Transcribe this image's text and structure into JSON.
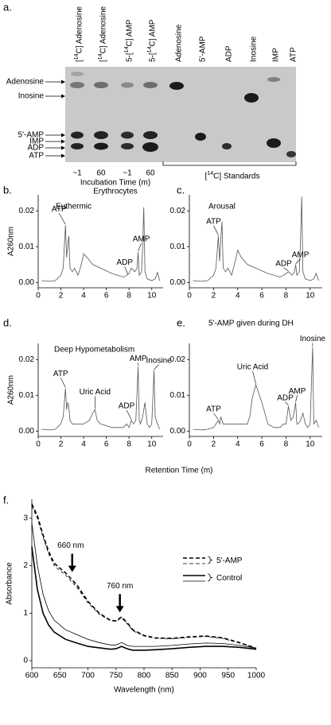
{
  "tlc": {
    "label": "a.",
    "lanes": [
      "[14C] Adenosine",
      "[14C] Adenosine",
      "5-[14C] AMP",
      "5-[14C] AMP",
      "Adenosine",
      "5'-AMP",
      "ADP",
      "Inosine",
      "IMP",
      "ATP"
    ],
    "spots": [
      "Adenosine",
      "Inosine",
      "5'-AMP",
      "IMP",
      "ADP",
      "ATP"
    ],
    "times": [
      "~1",
      "60",
      "~1",
      "60"
    ],
    "incubation": "Incubation Time (m)",
    "source": "Erythrocytes",
    "standards": "[14C] Standards"
  },
  "shared_xlabel": "Retention Time (m)",
  "chart_data": [
    {
      "type": "line",
      "label": "b.",
      "title": "Euthermic",
      "ylabel": "A260nm",
      "color": "#555555",
      "x": [
        0.3,
        1,
        1.5,
        2,
        2.2,
        2.4,
        2.5,
        2.6,
        2.7,
        2.8,
        3,
        3.2,
        3.5,
        3.8,
        4,
        4.3,
        4.8,
        5.5,
        6.5,
        7.5,
        7.8,
        8,
        8.2,
        8.5,
        8.7,
        8.8,
        8.9,
        9.1,
        9.2,
        9.3,
        9.4,
        9.6,
        10,
        10.3,
        10.5,
        10.7
      ],
      "values": [
        0.0005,
        0.0003,
        0.0005,
        0.002,
        0.004,
        0.016,
        0.007,
        0.01,
        0.013,
        0.004,
        0.003,
        0.004,
        0.002,
        0.005,
        0.008,
        0.007,
        0.005,
        0.004,
        0.0025,
        0.0015,
        0.002,
        0.0025,
        0.004,
        0.003,
        0.004,
        0.0085,
        0.002,
        0.003,
        0.01,
        0.021,
        0.003,
        0.001,
        0.0005,
        0.001,
        0.0028,
        0.0005
      ],
      "xlim": [
        0,
        11
      ],
      "xticks": [
        0,
        2,
        4,
        6,
        8,
        10
      ],
      "ylim": [
        -0.0015,
        0.0245
      ],
      "yticks": [
        {
          "value": 0,
          "label": "0.00"
        },
        0.01,
        0.02
      ],
      "annotations": [
        {
          "text": "ATP",
          "x": 2.4,
          "y": 0.016
        },
        {
          "text": "ADP",
          "x": 7.9,
          "y": 0.002
        },
        {
          "text": "AMP",
          "x": 8.8,
          "y": 0.0085
        }
      ]
    },
    {
      "type": "line",
      "label": "c.",
      "title": "Arousal",
      "color": "#555555",
      "x": [
        0.3,
        1,
        1.5,
        2,
        2.2,
        2.4,
        2.5,
        2.6,
        2.7,
        2.8,
        3,
        3.2,
        3.5,
        3.8,
        4,
        4.3,
        4.8,
        5.5,
        6.5,
        7.5,
        7.8,
        8,
        8.2,
        8.5,
        8.7,
        8.8,
        8.9,
        9.1,
        9.2,
        9.3,
        9.4,
        9.6,
        10,
        10.3,
        10.5,
        10.7
      ],
      "values": [
        0.0005,
        0.0003,
        0.0005,
        0.002,
        0.004,
        0.013,
        0.006,
        0.012,
        0.017,
        0.004,
        0.003,
        0.004,
        0.002,
        0.006,
        0.009,
        0.007,
        0.005,
        0.004,
        0.0025,
        0.0015,
        0.002,
        0.0025,
        0.003,
        0.002,
        0.003,
        0.005,
        0.002,
        0.003,
        0.012,
        0.024,
        0.003,
        0.001,
        0.0005,
        0.001,
        0.0025,
        0.0005
      ],
      "xlim": [
        0,
        11
      ],
      "xticks": [
        0,
        2,
        4,
        6,
        8,
        10
      ],
      "ylim": [
        -0.0015,
        0.0245
      ],
      "yticks": [
        {
          "value": 0,
          "label": "0.00"
        },
        0.01,
        0.02
      ],
      "annotations": [
        {
          "text": "ATP",
          "x": 2.4,
          "y": 0.013
        },
        {
          "text": "ADP",
          "x": 8.2,
          "y": 0.003
        },
        {
          "text": "AMP",
          "x": 8.8,
          "y": 0.005
        }
      ]
    },
    {
      "type": "line",
      "label": "d.",
      "title": "Deep Hypometabolism",
      "ylabel": "A260nm",
      "color": "#555555",
      "x": [
        0.3,
        1,
        1.5,
        2,
        2.2,
        2.4,
        2.5,
        2.6,
        2.7,
        2.8,
        3,
        3.5,
        4,
        4.5,
        4.8,
        5,
        5.2,
        5.5,
        6,
        6.5,
        7,
        7.5,
        7.8,
        8,
        8.2,
        8.4,
        8.6,
        8.8,
        8.9,
        9,
        9.2,
        9.4,
        9.6,
        9.8,
        10,
        10.2,
        10.3,
        10.5,
        10.7
      ],
      "values": [
        0.0005,
        0.0003,
        0.0005,
        0.002,
        0.004,
        0.012,
        0.006,
        0.008,
        0.007,
        0.003,
        0.002,
        0.002,
        0.002,
        0.003,
        0.005,
        0.006,
        0.003,
        0.002,
        0.0015,
        0.001,
        0.001,
        0.001,
        0.002,
        0.001,
        0.003,
        0.002,
        0.003,
        0.018,
        0.003,
        0.002,
        0.004,
        0.008,
        0.002,
        0.001,
        0.002,
        0.017,
        0.004,
        0.002,
        0.0005
      ],
      "xlim": [
        0,
        11
      ],
      "xticks": [
        0,
        2,
        4,
        6,
        8,
        10
      ],
      "ylim": [
        -0.0015,
        0.0245
      ],
      "yticks": [
        {
          "value": 0,
          "label": "0.00"
        },
        0.01,
        0.02
      ],
      "annotations": [
        {
          "text": "ATP",
          "x": 2.4,
          "y": 0.012
        },
        {
          "text": "Uric Acid",
          "x": 5.0,
          "y": 0.006
        },
        {
          "text": "ADP",
          "x": 8.2,
          "y": 0.003
        },
        {
          "text": "AMP",
          "x": 8.8,
          "y": 0.018
        },
        {
          "text": "Inosine",
          "x": 10.2,
          "y": 0.017
        }
      ]
    },
    {
      "type": "line",
      "label": "e.",
      "title": "5'-AMP given during DH",
      "color": "#555555",
      "x": [
        0.3,
        1,
        1.5,
        2,
        2.2,
        2.4,
        2.5,
        2.6,
        2.7,
        2.8,
        3,
        3.5,
        4,
        4.5,
        4.8,
        5,
        5.2,
        5.5,
        6,
        6.5,
        7,
        7.5,
        7.8,
        8,
        8.2,
        8.4,
        8.6,
        8.8,
        8.9,
        9,
        9.2,
        9.4,
        9.6,
        9.8,
        10,
        10.2,
        10.3,
        10.5,
        10.7
      ],
      "values": [
        0.0005,
        0.0003,
        0.0005,
        0.001,
        0.002,
        0.003,
        0.002,
        0.004,
        0.003,
        0.002,
        0.002,
        0.002,
        0.002,
        0.002,
        0.002,
        0.004,
        0.009,
        0.013,
        0.008,
        0.002,
        0.001,
        0.001,
        0.002,
        0.002,
        0.007,
        0.003,
        0.004,
        0.008,
        0.002,
        0.002,
        0.003,
        0.005,
        0.002,
        0.001,
        0.002,
        0.0235,
        0.002,
        0.003,
        0.001
      ],
      "xlim": [
        0,
        11
      ],
      "xticks": [
        0,
        2,
        4,
        6,
        8,
        10
      ],
      "ylim": [
        -0.0015,
        0.0245
      ],
      "yticks": [
        {
          "value": 0,
          "label": "0.00"
        },
        0.01,
        0.02
      ],
      "annotations": [
        {
          "text": "ATP",
          "x": 2.4,
          "y": 0.003
        },
        {
          "text": "Uric Acid",
          "x": 5.5,
          "y": 0.013
        },
        {
          "text": "ADP",
          "x": 8.2,
          "y": 0.007
        },
        {
          "text": "AMP",
          "x": 8.8,
          "y": 0.008
        },
        {
          "text": "Inosine",
          "x": 10.2,
          "y": 0.0235
        }
      ]
    },
    {
      "type": "spectrum",
      "label": "f.",
      "xlabel": "Wavelength (nm)",
      "ylabel": "Absorbance",
      "x": [
        600,
        610,
        620,
        630,
        640,
        660,
        680,
        700,
        720,
        740,
        750,
        760,
        770,
        780,
        800,
        820,
        850,
        880,
        910,
        940,
        970,
        1000
      ],
      "series": [
        {
          "name": "5'-AMP",
          "color": "#000000",
          "dash": true,
          "replicates": [
            [
              3.3,
              3.05,
              2.65,
              2.3,
              2.05,
              1.85,
              1.6,
              1.25,
              1.0,
              0.85,
              0.84,
              0.92,
              0.8,
              0.65,
              0.53,
              0.48,
              0.47,
              0.5,
              0.52,
              0.48,
              0.38,
              0.26
            ],
            [
              3.25,
              3.0,
              2.6,
              2.25,
              2.0,
              1.8,
              1.55,
              1.22,
              0.98,
              0.84,
              0.83,
              0.9,
              0.78,
              0.63,
              0.52,
              0.47,
              0.46,
              0.49,
              0.51,
              0.47,
              0.37,
              0.26
            ]
          ]
        },
        {
          "name": "Control",
          "color": "#000000",
          "dash": false,
          "replicates": [
            [
              2.4,
              1.5,
              1.0,
              0.75,
              0.6,
              0.45,
              0.37,
              0.3,
              0.27,
              0.24,
              0.25,
              0.3,
              0.25,
              0.22,
              0.22,
              0.23,
              0.25,
              0.28,
              0.3,
              0.3,
              0.28,
              0.24
            ],
            [
              2.9,
              2.0,
              1.4,
              1.05,
              0.85,
              0.65,
              0.55,
              0.45,
              0.38,
              0.33,
              0.33,
              0.38,
              0.32,
              0.3,
              0.3,
              0.3,
              0.32,
              0.35,
              0.37,
              0.36,
              0.32,
              0.26
            ]
          ]
        }
      ],
      "xlim": [
        600,
        1000
      ],
      "xticks": [
        600,
        650,
        700,
        750,
        800,
        850,
        900,
        950,
        1000
      ],
      "ylim": [
        -0.15,
        3.4
      ],
      "yticks": [
        0,
        1,
        2,
        3
      ],
      "annotations": [
        {
          "text": "660 nm",
          "x": 672,
          "y": 1.85
        },
        {
          "text": "760 nm",
          "x": 757,
          "y": 1.0
        }
      ]
    }
  ]
}
